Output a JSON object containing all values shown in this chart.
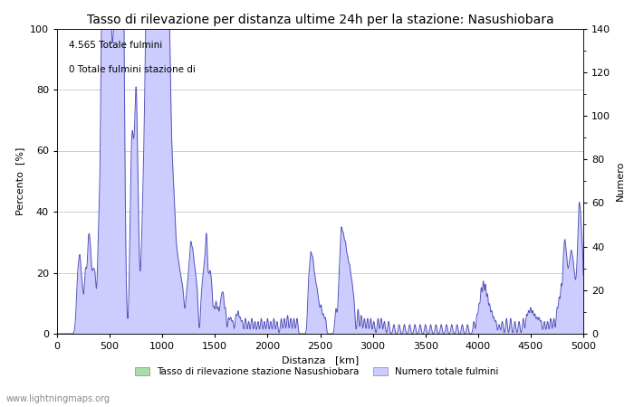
{
  "title": "Tasso di rilevazione per distanza ultime 24h per la stazione: Nasushiobara",
  "xlabel": "Distanza   [km]",
  "ylabel_left": "Percento  [%]",
  "ylabel_right": "Numero",
  "annotation_line1": "4.565 Totale fulmini",
  "annotation_line2": "0 Totale fulmini stazione di",
  "legend_label1": "Tasso di rilevazione stazione Nasushiobara",
  "legend_label2": "Numero totale fulmini",
  "legend_color1": "#aaddaa",
  "legend_color2": "#ccccff",
  "line_color": "#5555bb",
  "fill_color": "#ccccff",
  "watermark": "www.lightningmaps.org",
  "xlim": [
    0,
    5000
  ],
  "ylim_left": [
    0,
    100
  ],
  "ylim_right": [
    0,
    140
  ],
  "xticks": [
    0,
    500,
    1000,
    1500,
    2000,
    2500,
    3000,
    3500,
    4000,
    4500,
    5000
  ],
  "yticks_left": [
    0,
    20,
    40,
    60,
    80,
    100
  ],
  "yticks_right": [
    0,
    20,
    40,
    60,
    80,
    100,
    120,
    140
  ],
  "grid_color": "#bbbbbb",
  "background_color": "#ffffff",
  "title_fontsize": 10,
  "axis_fontsize": 8,
  "tick_fontsize": 8
}
